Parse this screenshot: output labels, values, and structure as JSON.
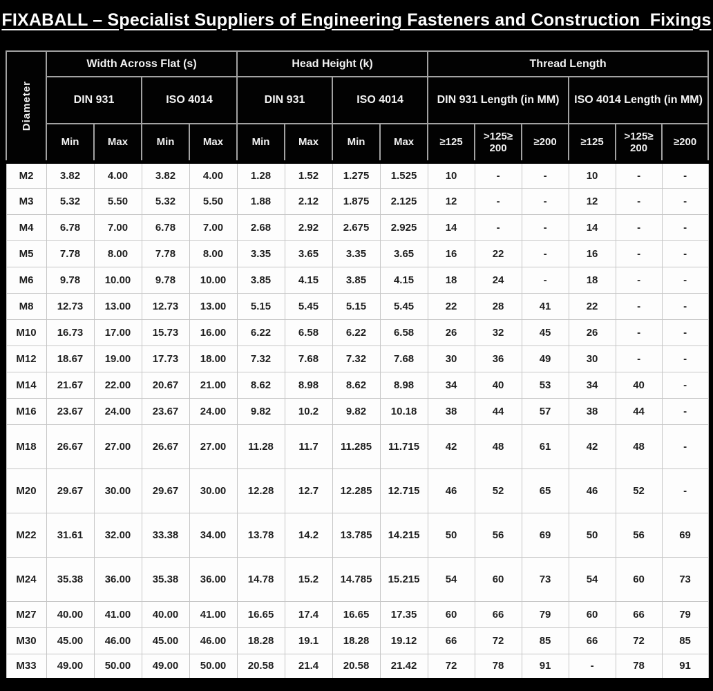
{
  "title": "FIXABALL – Specialist Suppliers of Engineering Fasteners and Construction  Fixings",
  "table": {
    "diameter_header": "Diameter",
    "groups": [
      {
        "label": "Width Across Flat (s)",
        "span": 4
      },
      {
        "label": "Head Height (k)",
        "span": 4
      },
      {
        "label": "Thread Length",
        "span": 6
      }
    ],
    "standards": [
      "DIN 931",
      "ISO 4014",
      "DIN 931",
      "ISO 4014",
      "DIN 931 Length (in MM)",
      "ISO 4014 Length (in MM)"
    ],
    "subheaders": [
      "Min",
      "Max",
      "Min",
      "Max",
      "Min",
      "Max",
      "Min",
      "Max",
      "≥125",
      ">125≥ 200",
      "≥200",
      "≥125",
      ">125≥ 200",
      "≥200"
    ],
    "rows": [
      {
        "diameter": "M2",
        "tall": false,
        "values": [
          "3.82",
          "4.00",
          "3.82",
          "4.00",
          "1.28",
          "1.52",
          "1.275",
          "1.525",
          "10",
          "-",
          "-",
          "10",
          "-",
          "-"
        ]
      },
      {
        "diameter": "M3",
        "tall": false,
        "values": [
          "5.32",
          "5.50",
          "5.32",
          "5.50",
          "1.88",
          "2.12",
          "1.875",
          "2.125",
          "12",
          "-",
          "-",
          "12",
          "-",
          "-"
        ]
      },
      {
        "diameter": "M4",
        "tall": false,
        "values": [
          "6.78",
          "7.00",
          "6.78",
          "7.00",
          "2.68",
          "2.92",
          "2.675",
          "2.925",
          "14",
          "-",
          "-",
          "14",
          "-",
          "-"
        ]
      },
      {
        "diameter": "M5",
        "tall": false,
        "values": [
          "7.78",
          "8.00",
          "7.78",
          "8.00",
          "3.35",
          "3.65",
          "3.35",
          "3.65",
          "16",
          "22",
          "-",
          "16",
          "-",
          "-"
        ]
      },
      {
        "diameter": "M6",
        "tall": false,
        "values": [
          "9.78",
          "10.00",
          "9.78",
          "10.00",
          "3.85",
          "4.15",
          "3.85",
          "4.15",
          "18",
          "24",
          "-",
          "18",
          "-",
          "-"
        ]
      },
      {
        "diameter": "M8",
        "tall": false,
        "values": [
          "12.73",
          "13.00",
          "12.73",
          "13.00",
          "5.15",
          "5.45",
          "5.15",
          "5.45",
          "22",
          "28",
          "41",
          "22",
          "-",
          "-"
        ]
      },
      {
        "diameter": "M10",
        "tall": false,
        "values": [
          "16.73",
          "17.00",
          "15.73",
          "16.00",
          "6.22",
          "6.58",
          "6.22",
          "6.58",
          "26",
          "32",
          "45",
          "26",
          "-",
          "-"
        ]
      },
      {
        "diameter": "M12",
        "tall": false,
        "values": [
          "18.67",
          "19.00",
          "17.73",
          "18.00",
          "7.32",
          "7.68",
          "7.32",
          "7.68",
          "30",
          "36",
          "49",
          "30",
          "-",
          "-"
        ]
      },
      {
        "diameter": "M14",
        "tall": false,
        "values": [
          "21.67",
          "22.00",
          "20.67",
          "21.00",
          "8.62",
          "8.98",
          "8.62",
          "8.98",
          "34",
          "40",
          "53",
          "34",
          "40",
          "-"
        ]
      },
      {
        "diameter": "M16",
        "tall": false,
        "values": [
          "23.67",
          "24.00",
          "23.67",
          "24.00",
          "9.82",
          "10.2",
          "9.82",
          "10.18",
          "38",
          "44",
          "57",
          "38",
          "44",
          "-"
        ]
      },
      {
        "diameter": "M18",
        "tall": true,
        "values": [
          "26.67",
          "27.00",
          "26.67",
          "27.00",
          "11.28",
          "11.7",
          "11.285",
          "11.715",
          "42",
          "48",
          "61",
          "42",
          "48",
          "-"
        ]
      },
      {
        "diameter": "M20",
        "tall": true,
        "values": [
          "29.67",
          "30.00",
          "29.67",
          "30.00",
          "12.28",
          "12.7",
          "12.285",
          "12.715",
          "46",
          "52",
          "65",
          "46",
          "52",
          "-"
        ]
      },
      {
        "diameter": "M22",
        "tall": true,
        "values": [
          "31.61",
          "32.00",
          "33.38",
          "34.00",
          "13.78",
          "14.2",
          "13.785",
          "14.215",
          "50",
          "56",
          "69",
          "50",
          "56",
          "69"
        ]
      },
      {
        "diameter": "M24",
        "tall": true,
        "values": [
          "35.38",
          "36.00",
          "35.38",
          "36.00",
          "14.78",
          "15.2",
          "14.785",
          "15.215",
          "54",
          "60",
          "73",
          "54",
          "60",
          "73"
        ]
      },
      {
        "diameter": "M27",
        "tall": false,
        "values": [
          "40.00",
          "41.00",
          "40.00",
          "41.00",
          "16.65",
          "17.4",
          "16.65",
          "17.35",
          "60",
          "66",
          "79",
          "60",
          "66",
          "79"
        ]
      },
      {
        "diameter": "M30",
        "tall": false,
        "values": [
          "45.00",
          "46.00",
          "45.00",
          "46.00",
          "18.28",
          "19.1",
          "18.28",
          "19.12",
          "66",
          "72",
          "85",
          "66",
          "72",
          "85"
        ]
      },
      {
        "diameter": "M33",
        "tall": false,
        "values": [
          "49.00",
          "50.00",
          "49.00",
          "50.00",
          "20.58",
          "21.4",
          "20.58",
          "21.42",
          "72",
          "78",
          "91",
          "-",
          "78",
          "91"
        ]
      }
    ]
  }
}
